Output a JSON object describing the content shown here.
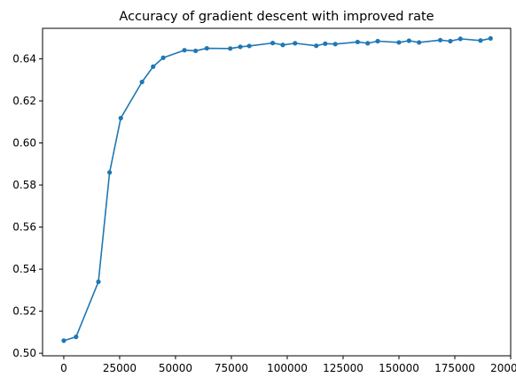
{
  "chart_data": {
    "type": "line",
    "title": "Accuracy of gradient descent with improved rate",
    "xlabel": "",
    "ylabel": "",
    "xlim": [
      -9500,
      200000
    ],
    "ylim": [
      0.4988,
      0.6545
    ],
    "grid": false,
    "legend": "none",
    "line_color": "#1f77b4",
    "marker": "circle",
    "x_ticks": [
      0,
      25000,
      50000,
      75000,
      100000,
      125000,
      150000,
      175000,
      200000
    ],
    "y_ticks": [
      0.5,
      0.52,
      0.54,
      0.56,
      0.58,
      0.6,
      0.62,
      0.64
    ],
    "x_tick_labels": [
      "0",
      "25000",
      "50000",
      "75000",
      "100000",
      "125000",
      "150000",
      "175000",
      "200000"
    ],
    "y_tick_labels": [
      "0.50",
      "0.52",
      "0.54",
      "0.56",
      "0.58",
      "0.60",
      "0.62",
      "0.64"
    ],
    "series": [
      {
        "x": [
          0,
          5500,
          15500,
          20500,
          25500,
          35000,
          40000,
          44500,
          54000,
          59000,
          64000,
          74500,
          79000,
          83000,
          93500,
          98000,
          103500,
          113000,
          117000,
          121500,
          131500,
          136000,
          140500,
          150000,
          154500,
          159000,
          168500,
          173000,
          177500,
          186500,
          191000
        ],
        "y": [
          0.506,
          0.5078,
          0.534,
          0.586,
          0.6118,
          0.629,
          0.6363,
          0.6405,
          0.6441,
          0.6438,
          0.645,
          0.6449,
          0.6457,
          0.6461,
          0.6475,
          0.6466,
          0.6474,
          0.6462,
          0.6472,
          0.647,
          0.648,
          0.6474,
          0.6484,
          0.6478,
          0.6486,
          0.6478,
          0.6489,
          0.6484,
          0.6495,
          0.6487,
          0.6497
        ]
      }
    ]
  }
}
